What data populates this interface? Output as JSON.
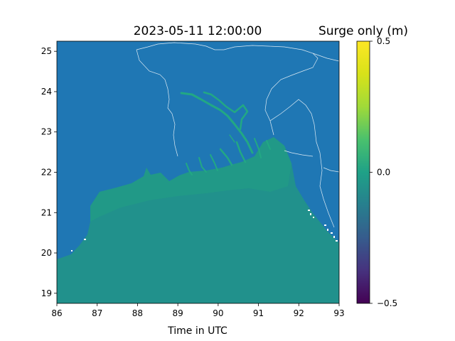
{
  "title": "2023-05-11 12:00:00",
  "colorbar_title": "Surge only (m)",
  "xlabel": "Time in UTC",
  "map": {
    "lon_ticks": [
      "86",
      "87",
      "88",
      "89",
      "90",
      "91",
      "92",
      "93"
    ],
    "lat_ticks": [
      "19",
      "20",
      "21",
      "22",
      "23",
      "24",
      "25"
    ],
    "lon_range": [
      86,
      93
    ],
    "lat_range": [
      18.75,
      25.25
    ],
    "land_color": "#1f77b4",
    "sea_color": "#21918c",
    "coastal_color": "#22a884",
    "border_color": "#ffffff"
  },
  "colorbar": {
    "ticks": [
      "0.5",
      "0.0",
      "−0.5"
    ],
    "range": [
      -0.5,
      0.5
    ],
    "colormap": "viridis"
  }
}
